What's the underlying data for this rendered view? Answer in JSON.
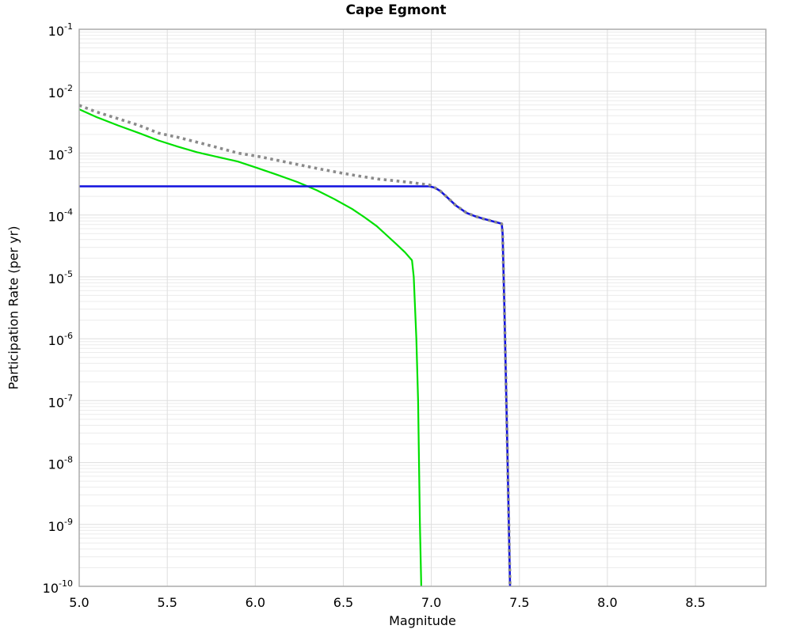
{
  "chart_data": {
    "type": "line",
    "title": "Cape Egmont",
    "xlabel": "Magnitude",
    "ylabel": "Participation Rate (per yr)",
    "xlim": [
      5.0,
      8.9
    ],
    "ylim": [
      1e-10,
      0.1
    ],
    "x_ticks": [
      5.0,
      5.5,
      6.0,
      6.5,
      7.0,
      7.5,
      8.0,
      8.5
    ],
    "y_tick_exponents": [
      -1,
      -2,
      -3,
      -4,
      -5,
      -6,
      -7,
      -8,
      -9,
      -10
    ],
    "grid": "log-minor and major horizontal gridlines plus vertical gridlines at each 0.5 magnitude, no legend",
    "grid_minor_color": "#ececec",
    "grid_major_color": "#dedede",
    "spine_color": "#a6a6a6",
    "series": [
      {
        "name": "green-solid",
        "style": "solid",
        "color": "#00e000",
        "width": 2.2,
        "points": [
          [
            5.0,
            0.0051
          ],
          [
            5.1,
            0.0038
          ],
          [
            5.22,
            0.0028
          ],
          [
            5.34,
            0.0021
          ],
          [
            5.45,
            0.0016
          ],
          [
            5.56,
            0.00127
          ],
          [
            5.67,
            0.00103
          ],
          [
            5.79,
            0.00086
          ],
          [
            5.9,
            0.00073
          ],
          [
            6.0,
            0.00059
          ],
          [
            6.12,
            0.00045
          ],
          [
            6.24,
            0.00034
          ],
          [
            6.35,
            0.00025
          ],
          [
            6.45,
            0.00018
          ],
          [
            6.55,
            0.000125
          ],
          [
            6.62,
            9.2e-05
          ],
          [
            6.69,
            6.6e-05
          ],
          [
            6.75,
            4.6e-05
          ],
          [
            6.8,
            3.4e-05
          ],
          [
            6.85,
            2.5e-05
          ],
          [
            6.89,
            1.85e-05
          ],
          [
            6.9,
            1e-05
          ],
          [
            6.915,
            1e-06
          ],
          [
            6.925,
            1e-07
          ],
          [
            6.935,
            1e-09
          ],
          [
            6.943,
            1e-10
          ]
        ]
      },
      {
        "name": "blue-solid",
        "style": "solid",
        "color": "#1212e0",
        "width": 2.6,
        "points": [
          [
            5.0,
            0.00029
          ],
          [
            6.99,
            0.00029
          ],
          [
            7.02,
            0.000275
          ],
          [
            7.05,
            0.000245
          ],
          [
            7.08,
            0.000205
          ],
          [
            7.11,
            0.00017
          ],
          [
            7.14,
            0.000142
          ],
          [
            7.17,
            0.000124
          ],
          [
            7.2,
            0.000108
          ],
          [
            7.25,
            9.5e-05
          ],
          [
            7.3,
            8.6e-05
          ],
          [
            7.35,
            7.9e-05
          ],
          [
            7.4,
            7.2e-05
          ],
          [
            7.405,
            5e-05
          ],
          [
            7.415,
            3e-06
          ],
          [
            7.43,
            3e-08
          ],
          [
            7.447,
            1e-10
          ]
        ]
      },
      {
        "name": "gray-dotted",
        "style": "dotted",
        "color": "#8a8a8a",
        "width": 3.6,
        "points": [
          [
            5.0,
            0.0059
          ],
          [
            5.1,
            0.0046
          ],
          [
            5.22,
            0.0036
          ],
          [
            5.34,
            0.0028
          ],
          [
            5.45,
            0.0021
          ],
          [
            5.56,
            0.0018
          ],
          [
            5.67,
            0.0015
          ],
          [
            5.79,
            0.00122
          ],
          [
            5.9,
            0.001
          ],
          [
            6.02,
            0.00088
          ],
          [
            6.13,
            0.00076
          ],
          [
            6.28,
            0.00062
          ],
          [
            6.4,
            0.00053
          ],
          [
            6.5,
            0.00047
          ],
          [
            6.6,
            0.00042
          ],
          [
            6.7,
            0.00038
          ],
          [
            6.8,
            0.000355
          ],
          [
            6.9,
            0.00033
          ],
          [
            6.99,
            0.000305
          ],
          [
            7.02,
            0.000275
          ],
          [
            7.05,
            0.000245
          ],
          [
            7.08,
            0.000205
          ],
          [
            7.11,
            0.00017
          ],
          [
            7.14,
            0.000142
          ],
          [
            7.17,
            0.000124
          ],
          [
            7.2,
            0.000108
          ],
          [
            7.25,
            9.5e-05
          ],
          [
            7.3,
            8.6e-05
          ],
          [
            7.35,
            7.9e-05
          ],
          [
            7.4,
            7.2e-05
          ],
          [
            7.405,
            5e-05
          ],
          [
            7.415,
            3e-06
          ],
          [
            7.43,
            3e-08
          ],
          [
            7.447,
            1e-10
          ]
        ]
      }
    ]
  }
}
